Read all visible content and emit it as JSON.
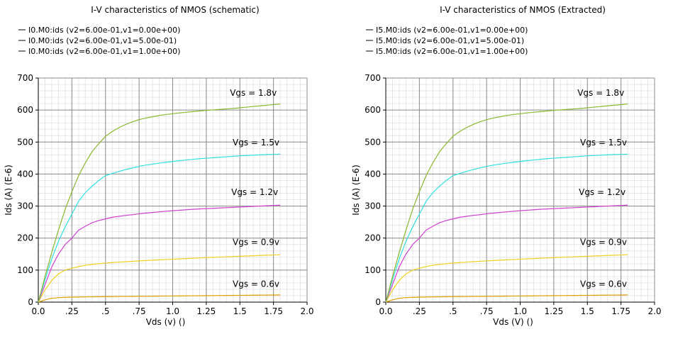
{
  "chart_data": [
    {
      "type": "line",
      "title": "I-V characteristics of NMOS (schematic)",
      "xlabel": "Vds (v) ()",
      "ylabel": "Ids (A) (E-6)",
      "xlim": [
        0,
        2.0
      ],
      "ylim": [
        0,
        700
      ],
      "x_ticks": [
        0,
        0.25,
        0.5,
        0.75,
        1.0,
        1.25,
        1.5,
        1.75,
        2.0
      ],
      "x_tick_labels": [
        "0.0",
        ".25",
        ".5",
        ".75",
        "1.0",
        "1.25",
        "1.5",
        "1.75",
        "2.0"
      ],
      "y_ticks": [
        0,
        100,
        200,
        300,
        400,
        500,
        600,
        700
      ],
      "y_tick_labels": [
        "0",
        "100",
        "200",
        "300",
        "400",
        "500",
        "600",
        "700"
      ],
      "grid": true,
      "legend": [
        "I0.M0:ids (v2=6.00e-01,v1=0.00e+00)",
        "I0.M0:ids (v2=6.00e-01,v1=5.00e-01)",
        "I0.M0:ids (v2=6.00e-01,v1=1.00e+00)"
      ],
      "legend_position": "top-left",
      "x": [
        0,
        0.05,
        0.1,
        0.15,
        0.2,
        0.25,
        0.3,
        0.35,
        0.4,
        0.45,
        0.5,
        0.55,
        0.6,
        0.65,
        0.7,
        0.75,
        0.8,
        0.85,
        0.9,
        0.95,
        1.0,
        1.05,
        1.1,
        1.15,
        1.2,
        1.25,
        1.3,
        1.35,
        1.4,
        1.45,
        1.5,
        1.55,
        1.6,
        1.65,
        1.7,
        1.75,
        1.8
      ],
      "series": [
        {
          "name": "Vgs = 0.6v",
          "color": "#e0a000",
          "values": [
            0,
            7,
            12,
            14,
            15,
            15.5,
            16,
            16.3,
            16.6,
            16.9,
            17.2,
            17.4,
            17.6,
            17.8,
            18,
            18.2,
            18.4,
            18.6,
            18.8,
            19,
            19.2,
            19.4,
            19.6,
            19.8,
            20,
            20.2,
            20.4,
            20.6,
            20.8,
            21,
            21.2,
            21.4,
            21.6,
            21.8,
            22,
            22.2,
            22.4
          ]
        },
        {
          "name": "Vgs = 0.9v",
          "color": "#f0d020",
          "values": [
            0,
            38,
            68,
            88,
            100,
            106,
            111,
            115,
            118,
            120,
            122,
            123.5,
            125,
            126.3,
            127.5,
            128.7,
            129.8,
            130.9,
            132,
            133,
            134,
            135,
            136,
            137,
            138,
            139,
            140,
            140.8,
            141.6,
            142.4,
            143.2,
            144,
            144.8,
            145.6,
            146.4,
            147.2,
            148
          ]
        },
        {
          "name": "Vgs = 1.2v",
          "color": "#d040d0",
          "values": [
            0,
            55,
            110,
            150,
            180,
            200,
            225,
            237,
            248,
            255,
            260,
            265,
            268,
            271,
            273,
            276,
            278,
            280,
            282,
            284,
            285.5,
            287,
            288.5,
            290,
            291,
            292,
            293,
            294,
            295,
            296,
            297,
            298,
            299,
            300,
            301,
            302,
            303
          ]
        },
        {
          "name": "Vgs = 1.5v",
          "color": "#30e0e0",
          "values": [
            0,
            70,
            135,
            190,
            235,
            275,
            315,
            342,
            362,
            380,
            395,
            402,
            408,
            414,
            419,
            424,
            428,
            431,
            434,
            437,
            439.5,
            442,
            444,
            446,
            448,
            449.5,
            451,
            452.5,
            454,
            455.5,
            457,
            458,
            459,
            460,
            461,
            461.5,
            462
          ]
        },
        {
          "name": "Vgs = 1.8v",
          "color": "#8ab82e",
          "values": [
            0,
            80,
            155,
            225,
            290,
            345,
            395,
            435,
            470,
            495,
            518,
            533,
            545,
            555,
            563,
            570,
            575,
            579,
            583,
            586,
            588.5,
            591,
            593,
            595,
            597,
            599,
            600.5,
            602,
            603.5,
            605,
            607,
            609,
            611,
            613,
            615,
            617,
            619
          ]
        }
      ],
      "annotations": [
        {
          "text": "Vgs = 1.8v",
          "x": 1.6,
          "y": 645
        },
        {
          "text": "Vgs = 1.5v",
          "x": 1.62,
          "y": 490
        },
        {
          "text": "Vgs = 1.2v",
          "x": 1.61,
          "y": 335
        },
        {
          "text": "Vgs = 0.9v",
          "x": 1.62,
          "y": 178
        },
        {
          "text": "Vgs = 0.6v",
          "x": 1.62,
          "y": 48
        }
      ]
    },
    {
      "type": "line",
      "title": "I-V characteristics of NMOS (Extracted)",
      "xlabel": "Vds (V) ()",
      "ylabel": "Ids (A) (E-6)",
      "xlim": [
        0,
        2.0
      ],
      "ylim": [
        0,
        700
      ],
      "x_ticks": [
        0,
        0.25,
        0.5,
        0.75,
        1.0,
        1.25,
        1.5,
        1.75,
        2.0
      ],
      "x_tick_labels": [
        "0.0",
        ".25",
        ".5",
        ".75",
        "1.0",
        "1.25",
        "1.5",
        "1.75",
        "2.0"
      ],
      "y_ticks": [
        0,
        100,
        200,
        300,
        400,
        500,
        600,
        700
      ],
      "y_tick_labels": [
        "0",
        "100",
        "200",
        "300",
        "400",
        "500",
        "600",
        "700"
      ],
      "grid": true,
      "legend": [
        "I5.M0:ids (v2=6.00e-01,v1=0.00e+00)",
        "I5.M0:ids (v2=6.00e-01,v1=5.00e-01)",
        "I5.M0:ids (v2=6.00e-01,v1=1.00e+00)"
      ],
      "legend_position": "top-left",
      "x": [
        0,
        0.05,
        0.1,
        0.15,
        0.2,
        0.25,
        0.3,
        0.35,
        0.4,
        0.45,
        0.5,
        0.55,
        0.6,
        0.65,
        0.7,
        0.75,
        0.8,
        0.85,
        0.9,
        0.95,
        1.0,
        1.05,
        1.1,
        1.15,
        1.2,
        1.25,
        1.3,
        1.35,
        1.4,
        1.45,
        1.5,
        1.55,
        1.6,
        1.65,
        1.7,
        1.75,
        1.8
      ],
      "series": [
        {
          "name": "Vgs = 0.6v",
          "color": "#e0a000",
          "values": [
            0,
            7,
            12,
            14,
            15,
            15.5,
            16,
            16.3,
            16.6,
            16.9,
            17.2,
            17.4,
            17.6,
            17.8,
            18,
            18.2,
            18.4,
            18.6,
            18.8,
            19,
            19.2,
            19.4,
            19.6,
            19.8,
            20,
            20.2,
            20.4,
            20.6,
            20.8,
            21,
            21.2,
            21.4,
            21.6,
            21.8,
            22,
            22.2,
            22.4
          ]
        },
        {
          "name": "Vgs = 0.9v",
          "color": "#f0d020",
          "values": [
            0,
            38,
            68,
            88,
            100,
            106,
            111,
            115,
            118,
            120,
            122,
            123.5,
            125,
            126.3,
            127.5,
            128.7,
            129.8,
            130.9,
            132,
            133,
            134,
            135,
            136,
            137,
            138,
            139,
            140,
            140.8,
            141.6,
            142.4,
            143.2,
            144,
            144.8,
            145.6,
            146.4,
            147.2,
            148
          ]
        },
        {
          "name": "Vgs = 1.2v",
          "color": "#d040d0",
          "values": [
            0,
            55,
            110,
            150,
            180,
            200,
            225,
            237,
            248,
            255,
            260,
            265,
            268,
            271,
            273,
            276,
            278,
            280,
            282,
            284,
            285.5,
            287,
            288.5,
            290,
            291,
            292,
            293,
            294,
            295,
            296,
            297,
            298,
            299,
            300,
            301,
            302,
            303
          ]
        },
        {
          "name": "Vgs = 1.5v",
          "color": "#30e0e0",
          "values": [
            0,
            70,
            135,
            190,
            235,
            275,
            315,
            342,
            362,
            380,
            395,
            402,
            408,
            414,
            419,
            424,
            428,
            431,
            434,
            437,
            439.5,
            442,
            444,
            446,
            448,
            449.5,
            451,
            452.5,
            454,
            455.5,
            457,
            458,
            459,
            460,
            461,
            461.5,
            462
          ]
        },
        {
          "name": "Vgs = 1.8v",
          "color": "#8ab82e",
          "values": [
            0,
            80,
            155,
            225,
            290,
            345,
            395,
            435,
            470,
            495,
            518,
            533,
            545,
            555,
            563,
            570,
            575,
            579,
            583,
            586,
            588.5,
            591,
            593,
            595,
            597,
            599,
            600.5,
            602,
            603.5,
            605,
            607,
            609,
            611,
            613,
            615,
            617,
            619
          ]
        }
      ],
      "annotations": [
        {
          "text": "Vgs = 1.8v",
          "x": 1.6,
          "y": 645
        },
        {
          "text": "Vgs = 1.5v",
          "x": 1.62,
          "y": 490
        },
        {
          "text": "Vgs = 1.2v",
          "x": 1.61,
          "y": 335
        },
        {
          "text": "Vgs = 0.9v",
          "x": 1.62,
          "y": 178
        },
        {
          "text": "Vgs = 0.6v",
          "x": 1.62,
          "y": 48
        }
      ]
    }
  ]
}
